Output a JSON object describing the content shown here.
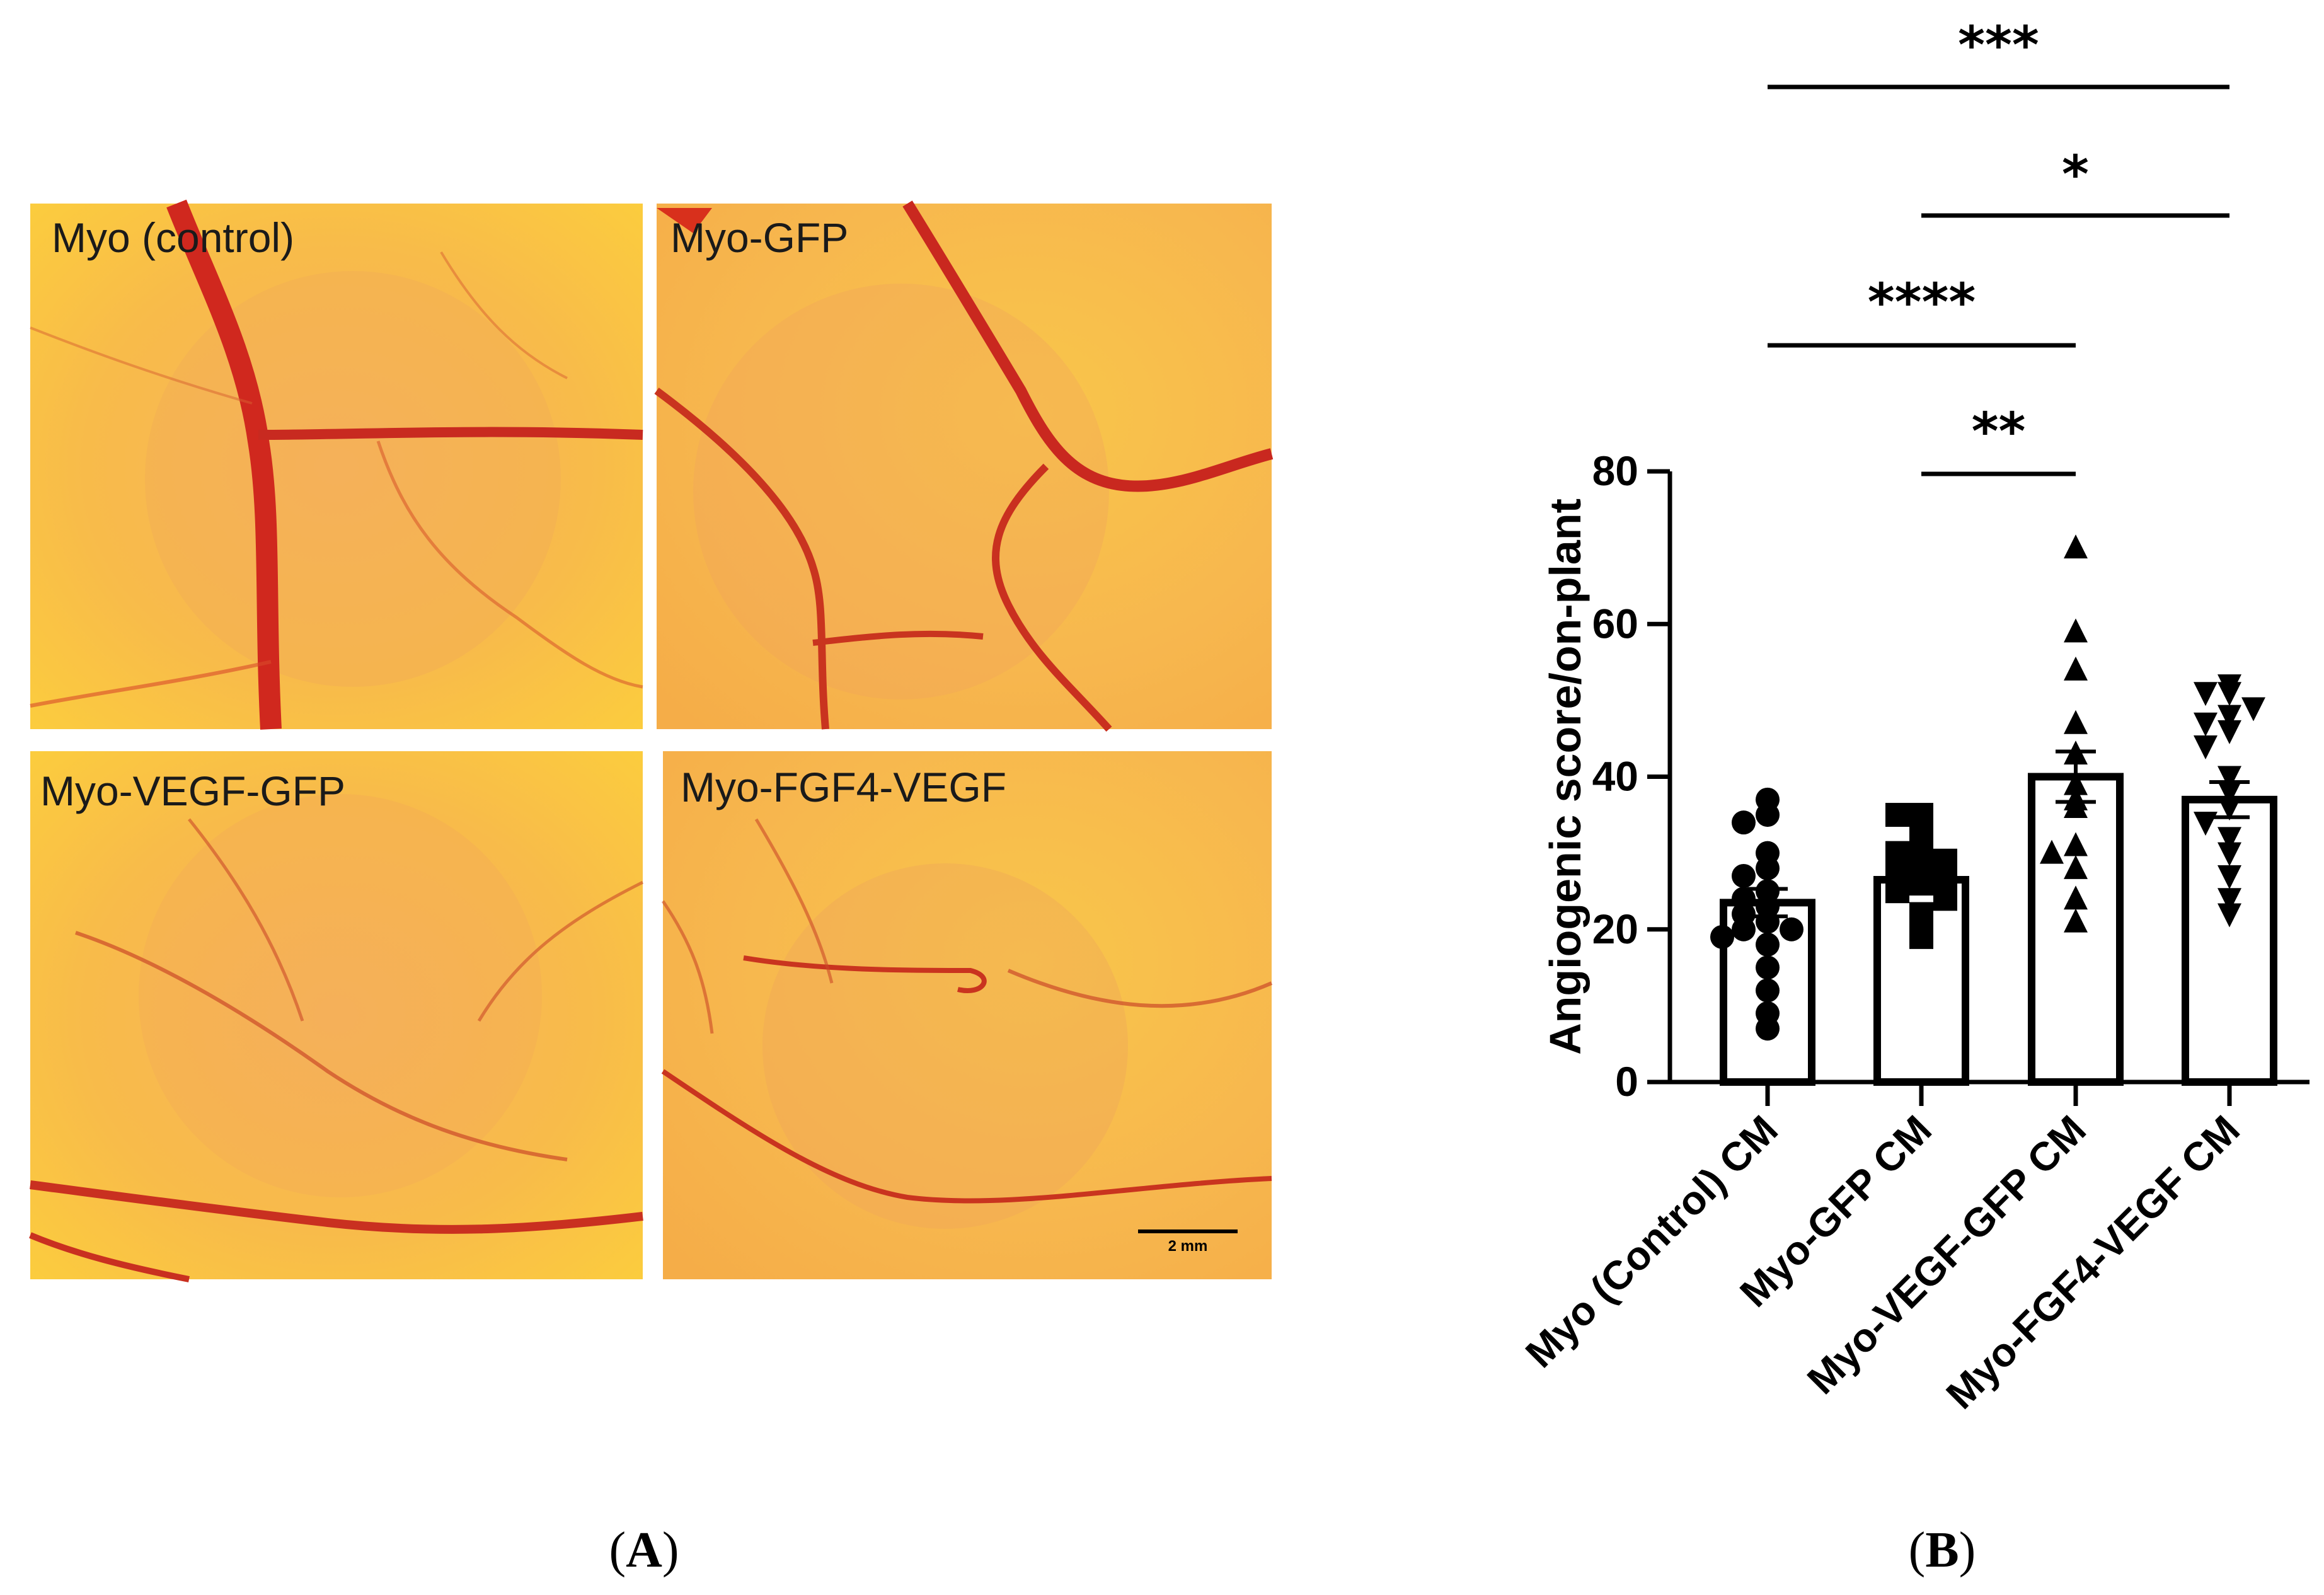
{
  "panel_a": {
    "label": "A",
    "photos": [
      {
        "label": "Myo (control)"
      },
      {
        "label": "Myo-GFP"
      },
      {
        "label": "Myo-VEGF-GFP"
      },
      {
        "label": "Myo-FGF4-VEGF"
      }
    ],
    "scale_bar": "2 mm"
  },
  "panel_b": {
    "label": "B"
  },
  "chart_data": {
    "type": "bar",
    "ylabel": "Angiogenic score/on-plant",
    "ylim": [
      0,
      80
    ],
    "yticks": [
      0,
      20,
      40,
      60,
      80
    ],
    "categories": [
      "Myo (Control) CM",
      "Myo-GFP CM",
      "Myo-VEGF-GFP CM",
      "Myo-FGF4-VEGF CM"
    ],
    "means": [
      23.5,
      26.5,
      40,
      37
    ],
    "sem": [
      1.8,
      1.3,
      3.3,
      2.3
    ],
    "markers": [
      "circle",
      "square",
      "triangle-up",
      "triangle-down"
    ],
    "points": [
      [
        37,
        35,
        34,
        30,
        28,
        27,
        25,
        24,
        23,
        22,
        21,
        20,
        20,
        19,
        18,
        15,
        12,
        9,
        7
      ],
      [
        35,
        35,
        33,
        31,
        30,
        29,
        28,
        27,
        27,
        26,
        25,
        24,
        22,
        19
      ],
      [
        70,
        59,
        54,
        47,
        43,
        39,
        37,
        36,
        31,
        30,
        28,
        24,
        21
      ],
      [
        52,
        51,
        51,
        49,
        48,
        47,
        46,
        44,
        40,
        38,
        36,
        34,
        32,
        30,
        27,
        24,
        22
      ]
    ],
    "significance": [
      {
        "from": 0,
        "to": 3,
        "label": "***"
      },
      {
        "from": 1,
        "to": 3,
        "label": "*"
      },
      {
        "from": 0,
        "to": 2,
        "label": "****"
      },
      {
        "from": 1,
        "to": 2,
        "label": "**"
      }
    ]
  }
}
